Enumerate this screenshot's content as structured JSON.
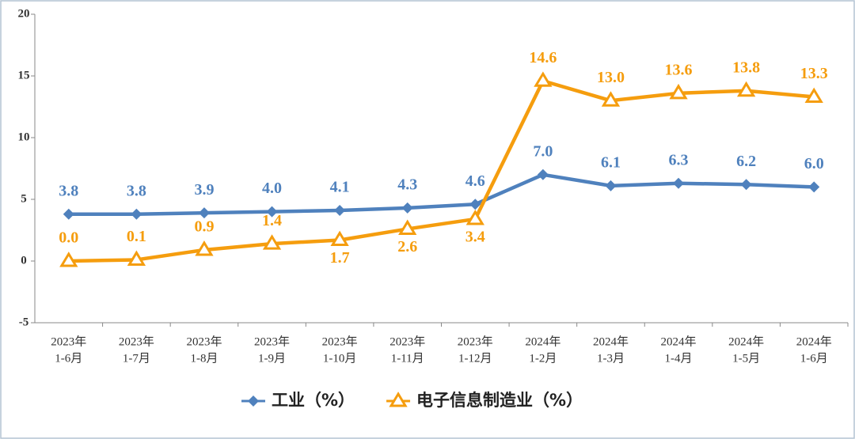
{
  "chart_data": {
    "type": "line",
    "categories": [
      [
        "2023年",
        "1-6月"
      ],
      [
        "2023年",
        "1-7月"
      ],
      [
        "2023年",
        "1-8月"
      ],
      [
        "2023年",
        "1-9月"
      ],
      [
        "2023年",
        "1-10月"
      ],
      [
        "2023年",
        "1-11月"
      ],
      [
        "2023年",
        "1-12月"
      ],
      [
        "2024年",
        "1-2月"
      ],
      [
        "2024年",
        "1-3月"
      ],
      [
        "2024年",
        "1-4月"
      ],
      [
        "2024年",
        "1-5月"
      ],
      [
        "2024年",
        "1-6月"
      ]
    ],
    "series": [
      {
        "name": "工业（%）",
        "color": "#4f81bd",
        "marker": "diamond",
        "values": [
          3.8,
          3.8,
          3.9,
          4.0,
          4.1,
          4.3,
          4.6,
          7.0,
          6.1,
          6.3,
          6.2,
          6.0
        ],
        "value_labels": [
          "3.8",
          "3.8",
          "3.9",
          "4.0",
          "4.1",
          "4.3",
          "4.6",
          "7.0",
          "6.1",
          "6.3",
          "6.2",
          "6.0"
        ]
      },
      {
        "name": "电子信息制造业（%）",
        "color": "#f59d0e",
        "marker": "triangle",
        "values": [
          0.0,
          0.1,
          0.9,
          1.4,
          1.7,
          2.6,
          3.4,
          14.6,
          13.0,
          13.6,
          13.8,
          13.3
        ],
        "value_labels": [
          "0.0",
          "0.1",
          "0.9",
          "1.4",
          "1.7",
          "2.6",
          "3.4",
          "14.6",
          "13.0",
          "13.6",
          "13.8",
          "13.3"
        ]
      }
    ],
    "ylim": [
      -5,
      20
    ],
    "yticks": [
      -5,
      0,
      5,
      10,
      15,
      20
    ],
    "grid": false,
    "legend": "bottom"
  }
}
